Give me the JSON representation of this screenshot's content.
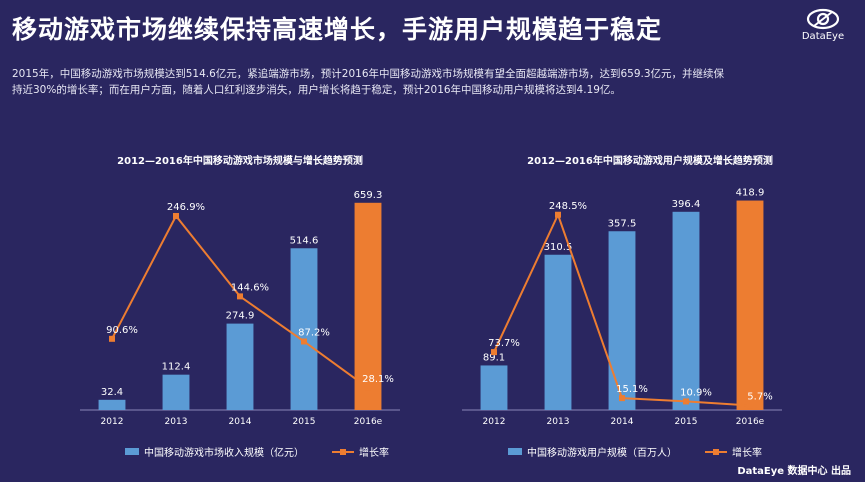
{
  "header": {
    "title": "移动游戏市场继续保持高速增长，手游用户规模趋于稳定",
    "logo_text": "DataEye",
    "logo_icon": "eye-icon"
  },
  "description": "2015年，中国移动游戏市场规模达到514.6亿元，紧追端游市场，预计2016年中国移动游戏市场规模有望全面超越端游市场，达到659.3亿元，并继续保持近30%的增长率；而在用户方面，随着人口红利逐步消失，用户增长将趋于稳定，预计2016年中国移动用户规模将达到4.19亿。",
  "footer": "DataEye 数据中心 出品",
  "colors": {
    "bar": "#5b9bd5",
    "bar_highlight": "#ed7d31",
    "line": "#ed7d31",
    "background": "#2a2660"
  },
  "chart_data": [
    {
      "type": "bar",
      "title": "2012—2016年中国移动游戏市场规模与增长趋势预测",
      "categories": [
        "2012",
        "2013",
        "2014",
        "2015",
        "2016e"
      ],
      "series": [
        {
          "name": "中国移动游戏市场收入规模（亿元）",
          "type": "bar",
          "values": [
            32.4,
            112.4,
            274.9,
            514.6,
            659.3
          ],
          "labels": [
            "32.4",
            "112.4",
            "274.9",
            "514.6",
            "659.3"
          ]
        },
        {
          "name": "增长率",
          "type": "line",
          "values": [
            90.6,
            246.9,
            144.6,
            87.2,
            28.1
          ],
          "labels": [
            "90.6%",
            "246.9%",
            "144.6%",
            "87.2%",
            "28.1%"
          ]
        }
      ],
      "bar_max": 700,
      "line_max": 280,
      "highlight_index": 4,
      "grid": false,
      "legend_position": "bottom"
    },
    {
      "type": "bar",
      "title": "2012—2016年中国移动游戏用户规模及增长趋势预测",
      "categories": [
        "2012",
        "2013",
        "2014",
        "2015",
        "2016e"
      ],
      "series": [
        {
          "name": "中国移动游戏用户规模（百万人）",
          "type": "bar",
          "values": [
            89.1,
            310.5,
            357.5,
            396.4,
            418.9
          ],
          "labels": [
            "89.1",
            "310.5",
            "357.5",
            "396.4",
            "418.9"
          ]
        },
        {
          "name": "增长率",
          "type": "line",
          "values": [
            73.7,
            248.5,
            15.1,
            10.9,
            5.7
          ],
          "labels": [
            "73.7%",
            "248.5%",
            "15.1%",
            "10.9%",
            "5.7%"
          ]
        }
      ],
      "bar_max": 440,
      "line_max": 280,
      "highlight_index": 4,
      "grid": false,
      "legend_position": "bottom"
    }
  ]
}
